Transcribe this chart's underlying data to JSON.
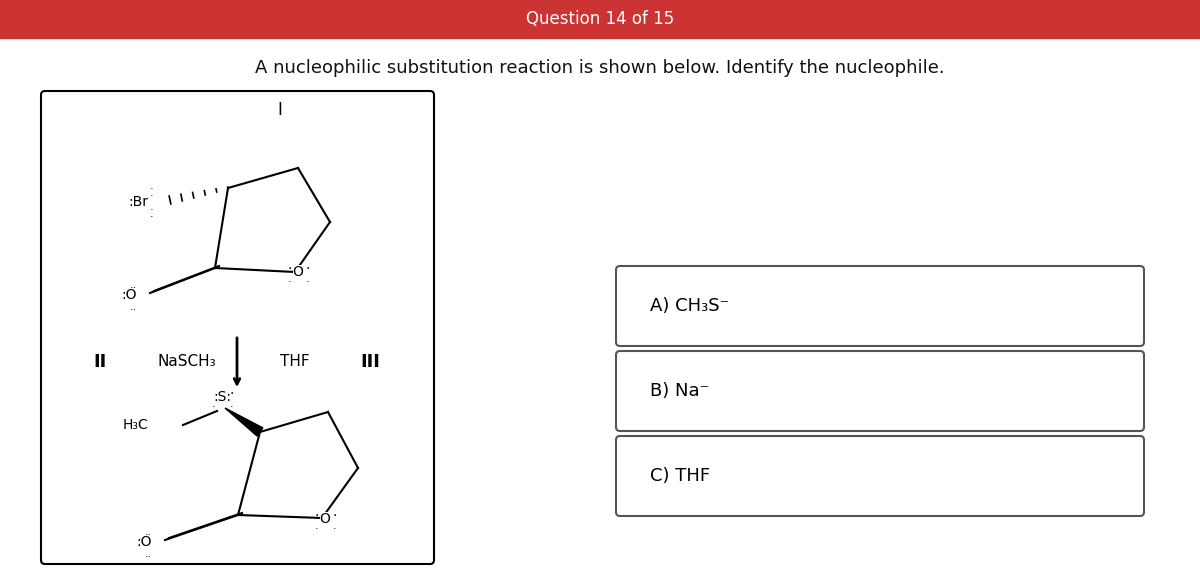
{
  "title": "Question 14 of 15",
  "title_bg": "#cc3333",
  "title_color": "#ffffff",
  "title_fontsize": 12,
  "question_text": "A nucleophilic substitution reaction is shown below. Identify the nucleophile.",
  "question_fontsize": 13,
  "background_color": "#ffffff",
  "label_I": "I",
  "label_II": "II",
  "label_III": "III",
  "reagent_text": "NaSCH₃",
  "solvent_text": "THF",
  "answer_A": "A) CH₃S⁻",
  "answer_B": "B) Na⁻",
  "answer_C": "C) THF"
}
